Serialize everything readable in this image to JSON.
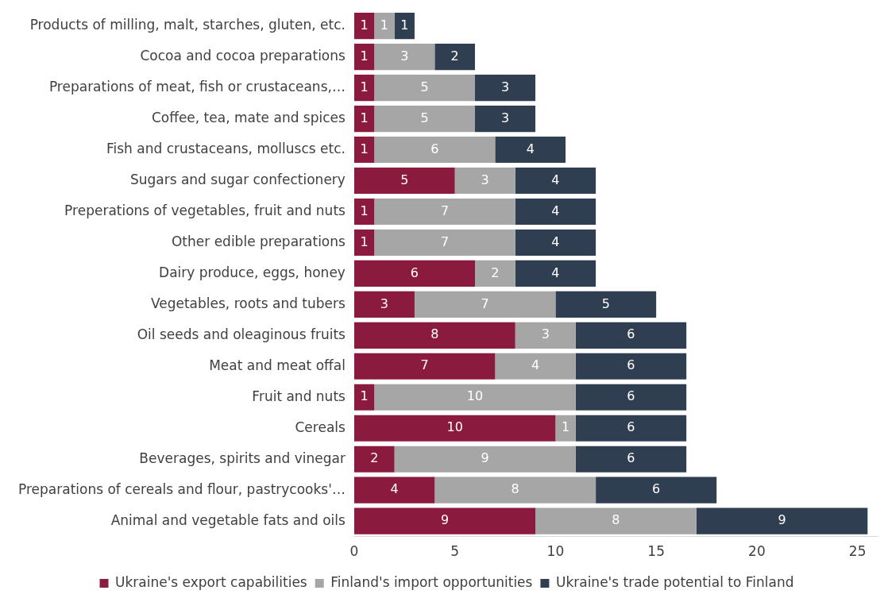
{
  "chart_data": {
    "type": "bar",
    "orientation": "horizontal",
    "stacked": true,
    "legend": "bottom",
    "grid": false,
    "categories": [
      "Products of milling, malt, starches, gluten, etc.",
      "Cocoa and cocoa preparations",
      "Preparations of meat, fish or crustaceans,…",
      "Coffee, tea, mate and spices",
      "Fish and crustaceans, molluscs etc.",
      "Sugars and sugar confectionery",
      "Preperations of vegetables, fruit and nuts",
      "Other edible preparations",
      "Dairy produce, eggs, honey",
      "Vegetables, roots and tubers",
      "Oil seeds and oleaginous fruits",
      "Meat and meat offal",
      "Fruit and nuts",
      "Cereals",
      "Beverages, spirits and vinegar",
      "Preparations of cereals and flour, pastrycooks'…",
      "Animal and vegetable fats and oils"
    ],
    "series": [
      {
        "name": "Ukraine's export capabilities",
        "color": "#8b1a3f",
        "values": [
          1,
          1,
          1,
          1,
          1,
          5,
          1,
          1,
          6,
          3,
          8,
          7,
          1,
          10,
          2,
          4,
          9
        ],
        "value_labels": [
          "1",
          "1",
          "1",
          "1",
          "1",
          "5",
          "1",
          "1",
          "6",
          "3",
          "8",
          "7",
          "1",
          "10",
          "2",
          "4",
          "9"
        ]
      },
      {
        "name": "Finland's import opportunities",
        "color": "#a6a6a6",
        "values": [
          1,
          3,
          5,
          5,
          6,
          3,
          7,
          7,
          2,
          7,
          3,
          4,
          10,
          1,
          9,
          8,
          8
        ],
        "value_labels": [
          "1",
          "3",
          "5",
          "5",
          "6",
          "3",
          "7",
          "7",
          "2",
          "7",
          "3",
          "4",
          "10",
          "1",
          "9",
          "8",
          "8"
        ]
      },
      {
        "name": "Ukraine's trade potential to Finland",
        "color": "#2f3e51",
        "values": [
          1,
          2,
          3,
          3,
          3.5,
          4,
          4,
          4,
          4,
          5,
          5.5,
          5.5,
          5.5,
          5.5,
          5.5,
          6,
          8.5
        ],
        "value_labels": [
          "1",
          "2",
          "3",
          "3",
          "4",
          "4",
          "4",
          "4",
          "4",
          "5",
          "6",
          "6",
          "6",
          "6",
          "6",
          "6",
          "9"
        ]
      }
    ],
    "xlim": [
      0,
      26
    ],
    "xticks": [
      0,
      5,
      10,
      15,
      20,
      25
    ]
  }
}
